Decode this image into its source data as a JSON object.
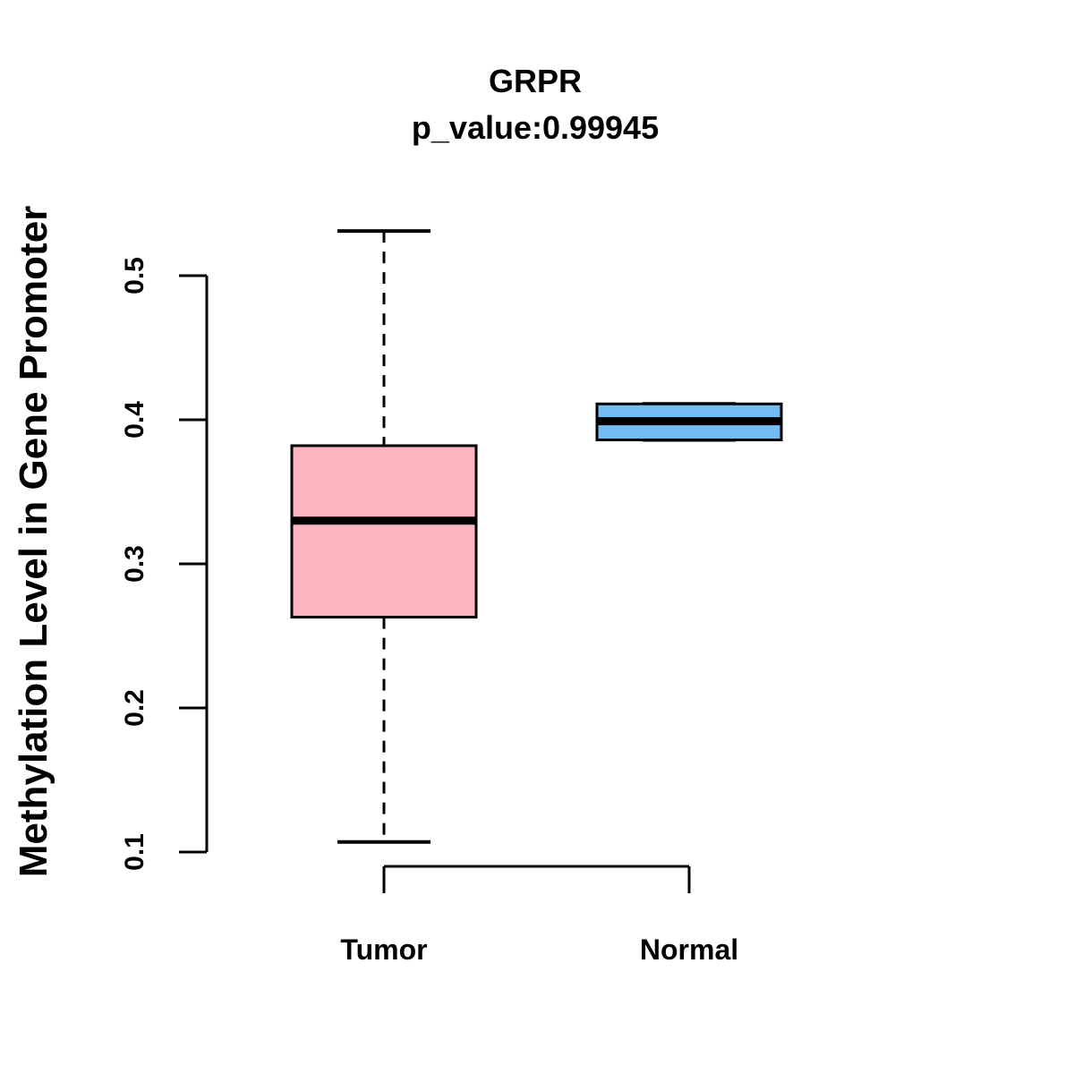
{
  "figure": {
    "title": "GRPR",
    "subtitle": "p_value:0.99945",
    "y_axis_label": "Methylation Level in Gene Promoter",
    "background_color": "#ffffff",
    "axis_color": "#000000"
  },
  "chart_data": {
    "type": "boxplot",
    "title": "GRPR",
    "subtitle": "p_value:0.99945",
    "xlabel": "",
    "ylabel": "Methylation Level in Gene Promoter",
    "categories": [
      "Tumor",
      "Normal"
    ],
    "ylim": [
      0.1,
      0.5
    ],
    "yticks": [
      0.1,
      0.2,
      0.3,
      0.4,
      0.5
    ],
    "grid": false,
    "legend": "none",
    "whisker_style": "dashed",
    "series": [
      {
        "name": "Tumor",
        "box_color": "#FFB6C1",
        "border_color": "#000000",
        "lower_whisker": 0.107,
        "q1": 0.263,
        "median": 0.33,
        "q3": 0.382,
        "upper_whisker": 0.531
      },
      {
        "name": "Normal",
        "box_color": "#73BDF2",
        "border_color": "#000000",
        "lower_whisker": 0.386,
        "q1": 0.386,
        "median": 0.399,
        "q3": 0.411,
        "upper_whisker": 0.411
      }
    ]
  }
}
